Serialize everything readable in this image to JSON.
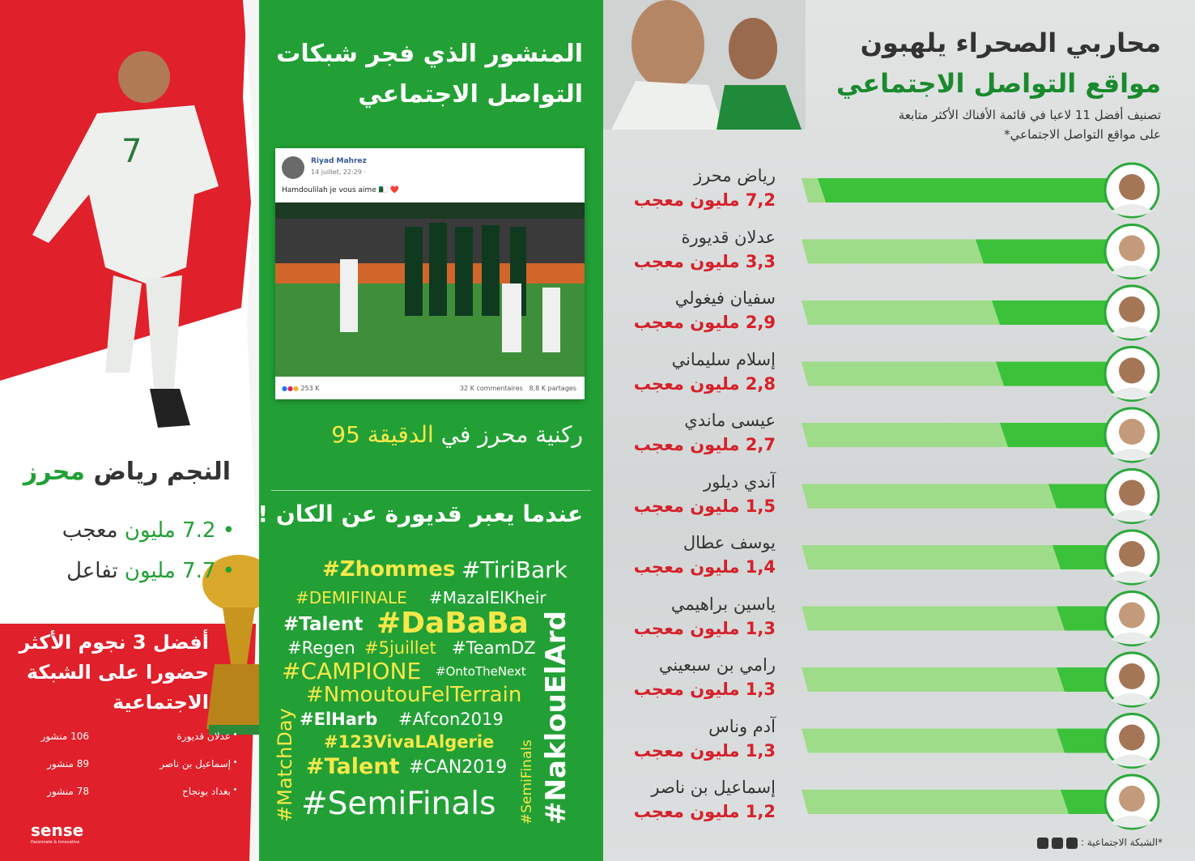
{
  "left": {
    "star_title": {
      "prefix": "النجم رياض",
      "highlight": "محرز"
    },
    "stats": [
      {
        "value": "7.2 مليون",
        "unit": "معجب"
      },
      {
        "value": "7.7 مليون",
        "unit": "تفاعل"
      }
    ],
    "top3_title": [
      "أفضل 3 نجوم الأكثر",
      "حضورا على الشبكة",
      "الاجتماعية"
    ],
    "top3": [
      {
        "name": "عدلان قديورة",
        "posts": "106 منشور"
      },
      {
        "name": "إسماعيل بن ناصر",
        "posts": "89 منشور"
      },
      {
        "name": "بغداد بونجاح",
        "posts": "78 منشور"
      }
    ],
    "logo": {
      "name": "sense",
      "tagline": "Passionate & Innovative"
    }
  },
  "middle": {
    "title": [
      "المنشور الذي فجر شبكات",
      "التواصل الاجتماعي"
    ],
    "post": {
      "author": "Riyad Mahrez",
      "date": "14 juillet, 22:29 ·",
      "text": "Hamdoulilah je vous aime 🇩🇿 ❤️",
      "reactions": "253 K",
      "comments": "32 K commentaires",
      "shares": "8,8 K partages"
    },
    "caption": {
      "before": "ركنية محرز في",
      "highlight": "الدقيقة",
      "after": "95"
    },
    "hashtags_title": "عندما يعبر قديورة عن الكان !",
    "hashtags": [
      "#Zhommes",
      "#TiriBark",
      "#DEMIFINALE",
      "#MazalElKheir",
      "#Talent",
      "#DaBaBa",
      "#Regen",
      "#5juillet",
      "#TeamDZ",
      "#CAMPIONE",
      "#OntoTheNext",
      "#NmoutouFelTerrain",
      "#ElHarb",
      "#Afcon2019",
      "#123VivaLAlgerie",
      "#Talent",
      "#CAN2019",
      "#SemiFinals",
      "#MatchDay",
      "#SemiFinals",
      "#NaklouElArd"
    ]
  },
  "right": {
    "title": [
      "محاربي الصحراء يلهبون",
      "مواقع التواصل الاجتماعي"
    ],
    "subtitle": [
      "تصنيف أفضل 11 لاعبا في قائمة الأفناك الأكثر متابعة",
      "على مواقع التواصل الاجتماعي*"
    ],
    "players": [
      {
        "name": "رياض محرز",
        "likes": 7.2,
        "likes_label": "7,2 مليون معجب"
      },
      {
        "name": "عدلان قديورة",
        "likes": 3.3,
        "likes_label": "3,3 مليون معجب"
      },
      {
        "name": "سفيان فيغولي",
        "likes": 2.9,
        "likes_label": "2,9 مليون معجب"
      },
      {
        "name": "إسلام سليماني",
        "likes": 2.8,
        "likes_label": "2,8 مليون معجب"
      },
      {
        "name": "عيسى ماندي",
        "likes": 2.7,
        "likes_label": "2,7 مليون معجب"
      },
      {
        "name": "آندي ديلور",
        "likes": 1.5,
        "likes_label": "1,5 مليون معجب"
      },
      {
        "name": "يوسف عطال",
        "likes": 1.4,
        "likes_label": "1,4 مليون معجب"
      },
      {
        "name": "ياسين براهيمي",
        "likes": 1.3,
        "likes_label": "1,3 مليون معجب"
      },
      {
        "name": "رامي بن سبعيني",
        "likes": 1.3,
        "likes_label": "1,3 مليون معجب"
      },
      {
        "name": "آدم وناس",
        "likes": 1.3,
        "likes_label": "1,3 مليون معجب"
      },
      {
        "name": "إسماعيل بن ناصر",
        "likes": 1.2,
        "likes_label": "1,2 مليون معجب"
      }
    ],
    "footer": "*الشبكة الاجتماعية :"
  }
}
